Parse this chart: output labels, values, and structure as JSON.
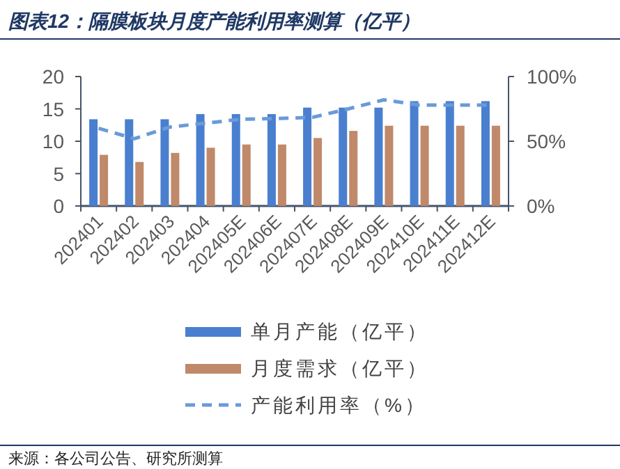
{
  "chart_data": {
    "type": "bar",
    "title": "图表12：隔膜板块月度产能利用率测算（亿平）",
    "categories": [
      "202401",
      "202402",
      "202403",
      "202404",
      "202405E",
      "202406E",
      "202407E",
      "202408E",
      "202409E",
      "202410E",
      "202411E",
      "202412E"
    ],
    "series": [
      {
        "name": "单月产能（亿平）",
        "color": "#4a7fd0",
        "values": [
          13.4,
          13.4,
          13.4,
          14.2,
          14.2,
          14.2,
          15.2,
          15.2,
          15.2,
          16.2,
          16.2,
          16.2
        ]
      },
      {
        "name": "月度需求（亿平）",
        "color": "#c0896a",
        "values": [
          7.9,
          6.8,
          8.2,
          9.0,
          9.5,
          9.5,
          10.5,
          11.6,
          12.4,
          12.4,
          12.4,
          12.4
        ]
      },
      {
        "name": "产能利用率（%）",
        "color": "#6a9ad8",
        "type": "line",
        "axis": "y2",
        "line_style": "dashed",
        "marker": "none",
        "values": [
          60,
          52,
          61,
          64,
          67,
          67.5,
          68.5,
          75,
          82,
          78,
          78,
          78
        ]
      }
    ],
    "ylim": [
      0,
      20
    ],
    "yticks": [
      0,
      5,
      10,
      15,
      20
    ],
    "y2lim": [
      0,
      100
    ],
    "y2ticks": [
      {
        "value": 0,
        "label": "0%"
      },
      {
        "value": 50,
        "label": "50%"
      },
      {
        "value": 100,
        "label": "100%"
      }
    ],
    "legend": "bottom",
    "grid": false,
    "annotations": [
      "来源：各公司公告、研究所测算"
    ]
  }
}
